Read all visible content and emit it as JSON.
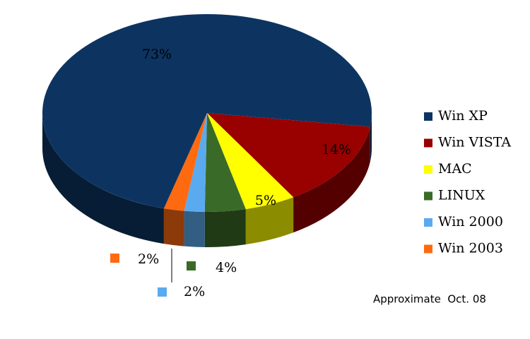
{
  "chart_data": {
    "type": "pie",
    "categories": [
      "Win XP",
      "Win VISTA",
      "MAC",
      "LINUX",
      "Win 2000",
      "Win 2003"
    ],
    "values": [
      73,
      14,
      5,
      4,
      2,
      2
    ],
    "value_labels": [
      "73%",
      "14%",
      "5%",
      "4%",
      "2%",
      "2%"
    ],
    "colors": [
      "#0d3461",
      "#990000",
      "#ffff00",
      "#3a6a28",
      "#5aaaf0",
      "#ff6a10"
    ],
    "annotation": "Approximate  Oct. 08",
    "legend": "right"
  }
}
